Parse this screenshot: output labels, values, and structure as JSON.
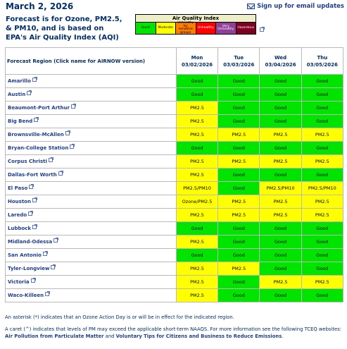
{
  "date": "March 2, 2026",
  "signup_label": "Sign up for email updates",
  "forecast_text": "Forecast is for Ozone, PM2.5, & PM10, and is based on EPA's Air Quality Index (AQI)",
  "aqi": {
    "title": "Air Quality Index",
    "categories": [
      {
        "label": "Good",
        "color": "#00e400"
      },
      {
        "label": "Moderate",
        "color": "#ffff00"
      },
      {
        "label": "Unhealthy for sensitive groups",
        "color": "#ff7e00"
      },
      {
        "label": "Unhealthy",
        "color": "#ff0000"
      },
      {
        "label": "Very Unhealthy",
        "color": "#8f3f97"
      },
      {
        "label": "Hazardous",
        "color": "#7e0023"
      }
    ]
  },
  "table": {
    "region_header": "Forecast Region (Click name for AIRNOW version)",
    "days": [
      {
        "day": "Mon",
        "date": "03/02/2026"
      },
      {
        "day": "Tue",
        "date": "03/03/2026"
      },
      {
        "day": "Wed",
        "date": "03/04/2026"
      },
      {
        "day": "Thu",
        "date": "03/05/2026"
      }
    ],
    "rows": [
      {
        "name": "Amarillo",
        "cells": [
          "Good",
          "Good",
          "Good",
          "Good"
        ]
      },
      {
        "name": "Austin",
        "cells": [
          "Good",
          "Good",
          "Good",
          "Good"
        ]
      },
      {
        "name": "Beaumont-Port Arthur",
        "cells": [
          "PM2.5",
          "Good",
          "Good",
          "Good"
        ]
      },
      {
        "name": "Big Bend",
        "cells": [
          "PM2.5",
          "Good",
          "Good",
          "Good"
        ]
      },
      {
        "name": "Brownsville-McAllen",
        "cells": [
          "PM2.5",
          "PM2.5",
          "PM2.5",
          "PM2.5"
        ]
      },
      {
        "name": "Bryan-College Station",
        "cells": [
          "Good",
          "Good",
          "Good",
          "Good"
        ]
      },
      {
        "name": "Corpus Christi",
        "cells": [
          "PM2.5",
          "PM2.5",
          "PM2.5",
          "PM2.5"
        ]
      },
      {
        "name": "Dallas-Fort Worth",
        "cells": [
          "PM2.5",
          "Good",
          "Good",
          "Good"
        ]
      },
      {
        "name": "El Paso",
        "cells": [
          "PM2.5/PM10",
          "Good",
          "PM2.5/PM10",
          "PM2.5/PM10"
        ]
      },
      {
        "name": "Houston",
        "cells": [
          "Ozone/PM2.5",
          "PM2.5",
          "PM2.5",
          "PM2.5"
        ]
      },
      {
        "name": "Laredo",
        "cells": [
          "PM2.5",
          "PM2.5",
          "PM2.5",
          "PM2.5"
        ]
      },
      {
        "name": "Lubbock",
        "cells": [
          "Good",
          "Good",
          "Good",
          "Good"
        ]
      },
      {
        "name": "Midland-Odessa",
        "cells": [
          "PM2.5",
          "Good",
          "Good",
          "Good"
        ]
      },
      {
        "name": "San Antonio",
        "cells": [
          "Good",
          "Good",
          "Good",
          "Good"
        ]
      },
      {
        "name": "Tyler-Longview",
        "cells": [
          "PM2.5",
          "PM2.5",
          "Good",
          "Good"
        ]
      },
      {
        "name": "Victoria",
        "cells": [
          "PM2.5",
          "Good",
          "PM2.5",
          "PM2.5"
        ]
      },
      {
        "name": "Waco-Killeen",
        "cells": [
          "PM2.5",
          "Good",
          "Good",
          "Good"
        ]
      }
    ]
  },
  "notes": {
    "asterisk": "An asterisk (*) indicates that an Ozone Action Day is or will be in effect for the indicated region.",
    "caret_prefix": "A caret (^) indicates that levels of PM may exceed the applicable short-term NAAQS. For more information see the following TCEQ websites:",
    "link1": "Air Pollution from Particulate Matter",
    "and": "and",
    "link2": "Voluntary Tips for Citizens and Business to Reduce Emissions",
    "end": "."
  }
}
